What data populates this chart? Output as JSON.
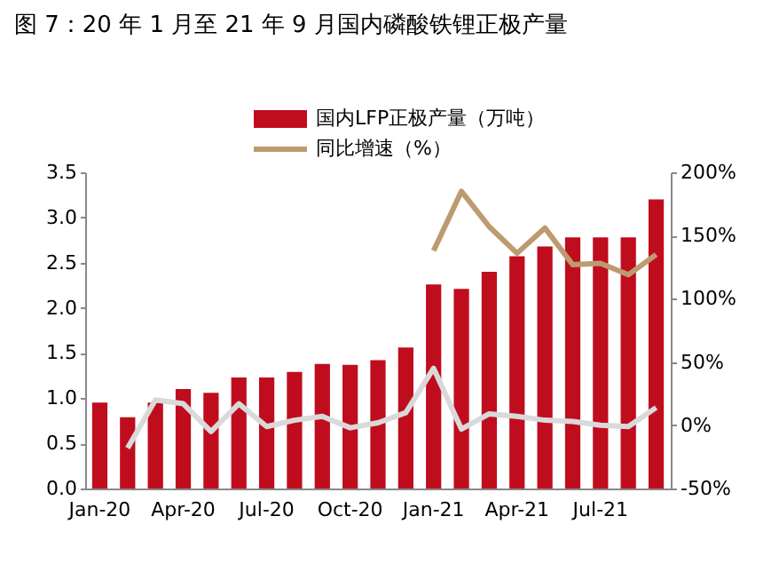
{
  "chart_data": {
    "type": "bar",
    "title": "图 7：20 年 1 月至 21 年 9 月国内磷酸铁锂正极产量",
    "categories": [
      "Jan-20",
      null,
      null,
      "Apr-20",
      null,
      null,
      "Jul-20",
      null,
      null,
      "Oct-20",
      null,
      null,
      "Jan-21",
      null,
      null,
      "Apr-21",
      null,
      null,
      "Jul-21",
      null,
      null
    ],
    "series": [
      {
        "name": "国内LFP正极产量（万吨）",
        "color": "#c00d1e",
        "values": [
          0.95,
          0.79,
          0.95,
          1.1,
          1.06,
          1.23,
          1.23,
          1.29,
          1.38,
          1.37,
          1.42,
          1.56,
          2.26,
          2.21,
          2.4,
          2.57,
          2.68,
          2.78,
          2.78,
          2.78,
          3.2
        ]
      },
      {
        "name": "同比增速（%）",
        "type": "line",
        "axis": "y2",
        "color": "#bd9b70",
        "values": [
          null,
          null,
          null,
          null,
          null,
          null,
          null,
          null,
          null,
          null,
          null,
          null,
          138,
          185,
          157,
          136,
          156,
          127,
          128,
          119,
          135
        ]
      },
      {
        "type": "line",
        "axis": "y2",
        "color": "#d9d9d9",
        "values": [
          null,
          -18,
          20,
          17,
          -5,
          17,
          -1,
          4,
          7,
          -2,
          2,
          10,
          45,
          -3,
          9,
          7,
          4,
          3,
          0,
          -1,
          14
        ]
      }
    ],
    "ylim": [
      0,
      3.5
    ],
    "yticks": [
      {
        "value": 0,
        "label": "0.0"
      },
      0.5,
      {
        "value": 1,
        "label": "1.0"
      },
      1.5,
      {
        "value": 2,
        "label": "2.0"
      },
      2.5,
      {
        "value": 3,
        "label": "3.0"
      },
      3.5
    ],
    "y2lim": [
      -50,
      200
    ],
    "y2ticks": [
      {
        "value": -50,
        "label": "-50%"
      },
      {
        "value": 0,
        "label": "0%"
      },
      {
        "value": 50,
        "label": "50%"
      },
      {
        "value": 100,
        "label": "100%"
      },
      {
        "value": 150,
        "label": "150%"
      },
      {
        "value": 200,
        "label": "200%"
      }
    ],
    "legend": "top",
    "grid": false,
    "marker": "none",
    "line_style": "solid"
  }
}
